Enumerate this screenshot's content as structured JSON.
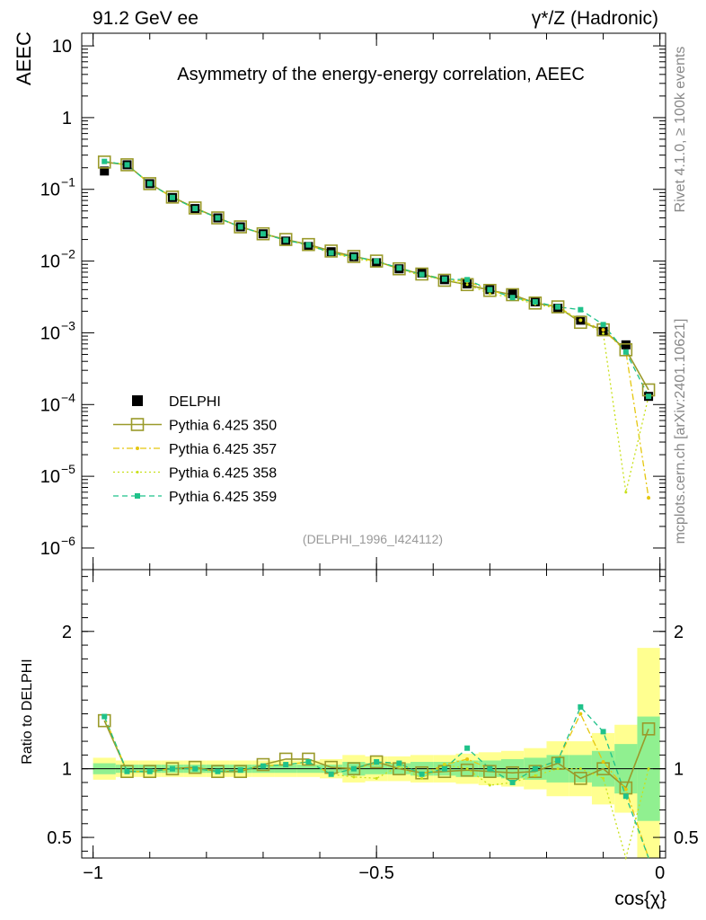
{
  "header": {
    "left": "91.2 GeV ee",
    "right": "γ*/Z (Hadronic)"
  },
  "side_texts": {
    "rivet": "Rivet 4.1.0, ≥ 100k events",
    "mcplots": "mcplots.cern.ch [arXiv:2401.10621]"
  },
  "colors": {
    "data": "#000000",
    "p350": "#9a9a2a",
    "p357": "#e5c70f",
    "p358": "#c8e01a",
    "p359": "#1fc28a",
    "band_inner": "#90f090",
    "band_outer": "#ffff90"
  },
  "chart_data": [
    {
      "type": "line",
      "panel": "main",
      "title": "Asymmetry of the energy-energy correlation, AEEC",
      "ylabel": "AEEC",
      "yscale": "log",
      "ylim": [
        5e-07,
        15
      ],
      "xlim": [
        -1.02,
        0.01
      ],
      "y_ticks": [
        {
          "v": 10,
          "label": "10"
        },
        {
          "v": 1,
          "label": "1"
        },
        {
          "v": 0.1,
          "label": "10",
          "sup": "−1"
        },
        {
          "v": 0.01,
          "label": "10",
          "sup": "−2"
        },
        {
          "v": 0.001,
          "label": "10",
          "sup": "−3"
        },
        {
          "v": 0.0001,
          "label": "10",
          "sup": "−4"
        },
        {
          "v": 1e-05,
          "label": "10",
          "sup": "−5"
        },
        {
          "v": 1e-06,
          "label": "10",
          "sup": "−6"
        }
      ],
      "annotation": "(DELPHI_1996_I424112)",
      "legend": [
        "DELPHI",
        "Pythia 6.425 350",
        "Pythia 6.425 357",
        "Pythia 6.425 358",
        "Pythia 6.425 359"
      ],
      "x": [
        -0.98,
        -0.94,
        -0.9,
        -0.86,
        -0.82,
        -0.78,
        -0.74,
        -0.7,
        -0.66,
        -0.62,
        -0.58,
        -0.54,
        -0.5,
        -0.46,
        -0.42,
        -0.38,
        -0.34,
        -0.3,
        -0.26,
        -0.22,
        -0.18,
        -0.14,
        -0.1,
        -0.06,
        -0.02
      ],
      "series": [
        {
          "name": "DELPHI",
          "key": "data",
          "values": [
            0.18,
            0.22,
            0.12,
            0.077,
            0.054,
            0.04,
            0.03,
            0.024,
            0.019,
            0.016,
            0.0135,
            0.0115,
            0.0095,
            0.0078,
            0.0068,
            0.0055,
            0.0048,
            0.004,
            0.0035,
            0.0027,
            0.0022,
            0.0015,
            0.00105,
            0.00068,
            0.00013
          ]
        },
        {
          "name": "Pythia 6.425 350",
          "key": "p350",
          "values": [
            0.24,
            0.22,
            0.12,
            0.078,
            0.055,
            0.04,
            0.03,
            0.024,
            0.02,
            0.017,
            0.0138,
            0.0116,
            0.01,
            0.0078,
            0.0066,
            0.0054,
            0.0047,
            0.0039,
            0.0034,
            0.0026,
            0.0023,
            0.0014,
            0.0011,
            0.00058,
            0.00016
          ]
        },
        {
          "name": "Pythia 6.425 357",
          "key": "p357",
          "values": [
            0.245,
            0.22,
            0.12,
            0.077,
            0.054,
            0.04,
            0.03,
            0.024,
            0.0195,
            0.0168,
            0.0128,
            0.0115,
            0.0098,
            0.008,
            0.0066,
            0.0056,
            0.0052,
            0.004,
            0.0031,
            0.0027,
            0.0023,
            0.0015,
            0.0011,
            0.00055,
            5e-06
          ]
        },
        {
          "name": "Pythia 6.425 358",
          "key": "p358",
          "values": [
            0.245,
            0.22,
            0.12,
            0.077,
            0.054,
            0.04,
            0.03,
            0.024,
            0.0195,
            0.0168,
            0.013,
            0.0108,
            0.0098,
            0.0078,
            0.0062,
            0.0056,
            0.0047,
            0.0035,
            0.0031,
            0.0025,
            0.0022,
            0.0015,
            0.00098,
            6e-06,
            0.00013
          ]
        },
        {
          "name": "Pythia 6.425 359",
          "key": "p359",
          "values": [
            0.245,
            0.22,
            0.12,
            0.077,
            0.054,
            0.04,
            0.03,
            0.024,
            0.0195,
            0.0168,
            0.013,
            0.0115,
            0.01,
            0.008,
            0.0065,
            0.0056,
            0.0055,
            0.004,
            0.0031,
            0.0027,
            0.0023,
            0.0021,
            0.0013,
            0.00054,
            0.00013
          ]
        }
      ]
    },
    {
      "type": "line",
      "panel": "ratio",
      "ylabel": "Ratio to DELPHI",
      "xlabel": "cos{χ}",
      "ylim": [
        0.35,
        2.45
      ],
      "xlim": [
        -1.02,
        0.01
      ],
      "y_ticks": [
        {
          "v": 0.5,
          "label": "0.5"
        },
        {
          "v": 1,
          "label": "1"
        },
        {
          "v": 2,
          "label": "2"
        }
      ],
      "x_ticks": [
        {
          "v": -1,
          "label": "−1"
        },
        {
          "v": -0.5,
          "label": "−0.5"
        },
        {
          "v": 0,
          "label": "0"
        }
      ],
      "x": [
        -0.98,
        -0.94,
        -0.9,
        -0.86,
        -0.82,
        -0.78,
        -0.74,
        -0.7,
        -0.66,
        -0.62,
        -0.58,
        -0.54,
        -0.5,
        -0.46,
        -0.42,
        -0.38,
        -0.34,
        -0.3,
        -0.26,
        -0.22,
        -0.18,
        -0.14,
        -0.1,
        -0.06,
        -0.02
      ],
      "band_inner": [
        0.04,
        0.03,
        0.03,
        0.03,
        0.03,
        0.03,
        0.03,
        0.03,
        0.03,
        0.03,
        0.03,
        0.05,
        0.04,
        0.04,
        0.05,
        0.05,
        0.06,
        0.06,
        0.07,
        0.08,
        0.1,
        0.1,
        0.13,
        0.18,
        0.38
      ],
      "band_outer": [
        0.08,
        0.06,
        0.06,
        0.06,
        0.06,
        0.06,
        0.06,
        0.06,
        0.06,
        0.06,
        0.07,
        0.1,
        0.09,
        0.09,
        0.1,
        0.1,
        0.11,
        0.12,
        0.13,
        0.15,
        0.2,
        0.2,
        0.26,
        0.32,
        0.88
      ],
      "series": [
        {
          "name": "Pythia 6.425 350",
          "key": "p350",
          "values": [
            1.35,
            0.98,
            0.98,
            1.0,
            1.01,
            0.98,
            0.98,
            1.03,
            1.07,
            1.07,
            1.01,
            1.0,
            1.05,
            1.0,
            0.97,
            0.98,
            0.99,
            0.98,
            0.97,
            0.98,
            1.04,
            0.93,
            1.0,
            0.86,
            1.29
          ]
        },
        {
          "name": "Pythia 6.425 357",
          "key": "p357",
          "values": [
            1.38,
            0.98,
            0.98,
            1.0,
            1.0,
            0.98,
            0.99,
            1.02,
            1.03,
            1.05,
            0.96,
            1.0,
            1.04,
            1.04,
            0.96,
            1.03,
            1.07,
            1.0,
            0.9,
            1.0,
            1.06,
            1.4,
            1.05,
            0.85,
            -0.5
          ]
        },
        {
          "name": "Pythia 6.425 358",
          "key": "p358",
          "values": [
            1.38,
            0.98,
            0.98,
            1.0,
            1.0,
            0.98,
            0.99,
            1.02,
            1.03,
            1.05,
            0.96,
            0.94,
            0.93,
            1.02,
            0.93,
            1.03,
            1.0,
            0.88,
            0.9,
            0.95,
            1.0,
            1.0,
            0.93,
            -0.5,
            1.0
          ]
        },
        {
          "name": "Pythia 6.425 359",
          "key": "p359",
          "values": [
            1.38,
            0.98,
            0.98,
            1.0,
            1.0,
            0.98,
            0.99,
            1.02,
            1.03,
            1.05,
            0.96,
            1.0,
            1.05,
            1.04,
            0.96,
            1.0,
            1.15,
            1.0,
            0.9,
            1.0,
            1.06,
            1.45,
            1.27,
            0.8,
            -0.5
          ]
        }
      ]
    }
  ]
}
